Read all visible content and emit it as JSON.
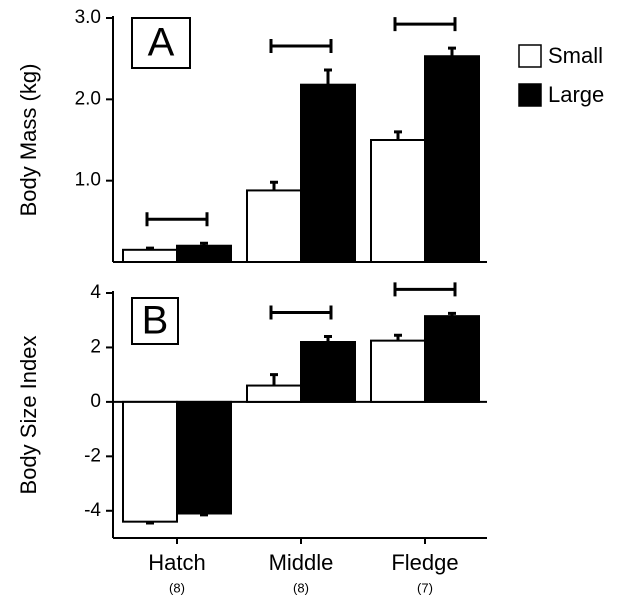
{
  "chart_data": [
    {
      "type": "bar",
      "panel_label": "A",
      "ylabel": "Body Mass (kg)",
      "ylim": [
        0,
        3
      ],
      "yticks": [
        {
          "value": 1,
          "label": "1.0"
        },
        {
          "value": 2,
          "label": "2.0"
        },
        {
          "value": 3,
          "label": "3.0"
        }
      ],
      "series": [
        {
          "name": "Small",
          "color": "#ffffff",
          "values": [
            0.15,
            0.88,
            1.5
          ],
          "errors": [
            0.02,
            0.1,
            0.1
          ]
        },
        {
          "name": "Large",
          "color": "#000000",
          "values": [
            0.2,
            2.18,
            2.53
          ],
          "errors": [
            0.03,
            0.18,
            0.1
          ]
        }
      ],
      "significant": [
        true,
        true,
        true
      ],
      "legend": "upper right outside"
    },
    {
      "type": "bar",
      "panel_label": "B",
      "ylabel": "Body Size Index",
      "categories": [
        "Hatch",
        "Middle",
        "Fledge"
      ],
      "category_notes": [
        "(8)",
        "(8)",
        "(7)"
      ],
      "ylim": [
        -5,
        4
      ],
      "yticks": [
        -4,
        -2,
        0,
        2,
        4
      ],
      "series": [
        {
          "color": "#ffffff",
          "values": [
            -4.4,
            0.6,
            2.25
          ],
          "errors": [
            0.05,
            0.4,
            0.2
          ]
        },
        {
          "color": "#000000",
          "values": [
            -4.1,
            2.2,
            3.15
          ],
          "errors": [
            0.05,
            0.2,
            0.1
          ]
        }
      ],
      "significant": [
        false,
        true,
        true
      ]
    }
  ]
}
